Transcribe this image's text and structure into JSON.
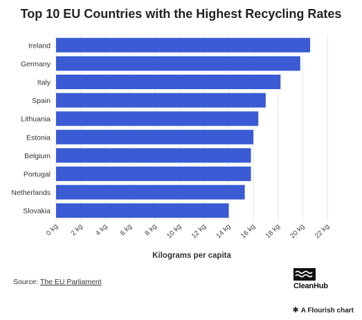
{
  "chart_data": {
    "type": "bar",
    "orientation": "horizontal",
    "title": "Top 10 EU Countries with the Highest Recycling Rates",
    "xlabel": "Kilograms per capita",
    "ylabel": "",
    "xlim": [
      0,
      22
    ],
    "x_ticks": [
      0,
      2,
      4,
      6,
      8,
      10,
      12,
      14,
      16,
      18,
      20,
      22
    ],
    "tick_unit": "kg",
    "grid": true,
    "bar_color": "#3a5bd4",
    "categories": [
      "Ireland",
      "Germany",
      "Italy",
      "Spain",
      "Lithuania",
      "Estonia",
      "Belgium",
      "Portugal",
      "Netherlands",
      "Slovakia"
    ],
    "values": [
      20.6,
      19.8,
      18.2,
      17.0,
      16.4,
      16.0,
      15.8,
      15.8,
      15.3,
      14.0
    ]
  },
  "footer": {
    "source_prefix": "Source: ",
    "source_link": "The EU Parliament",
    "logo_text": "CleanHub",
    "logo_icon": "wave-icon",
    "flourish_star": "✱",
    "flourish_text": "A Flourish chart"
  }
}
